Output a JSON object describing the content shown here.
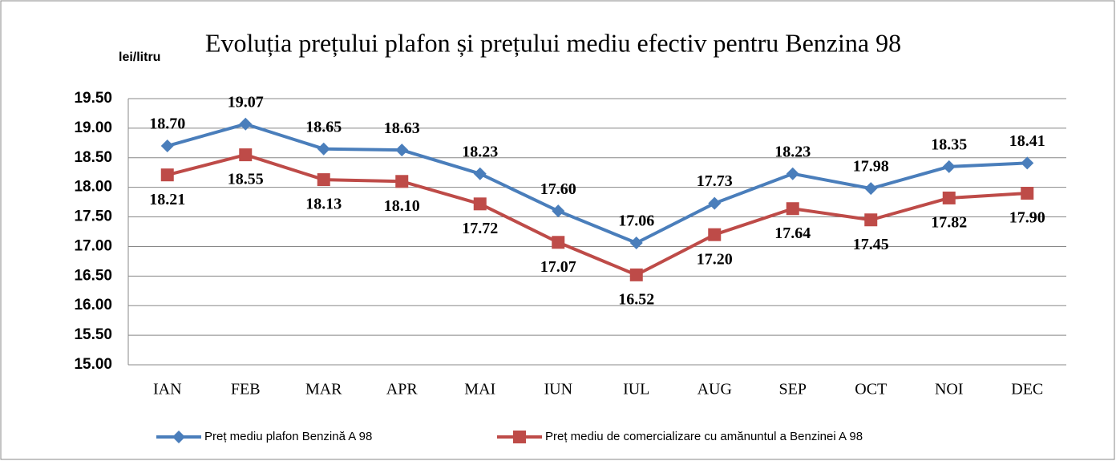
{
  "chart_data": {
    "type": "line",
    "title": "Evoluția prețului plafon și prețului mediu efectiv pentru Benzina 98",
    "y_label": "lei/litru",
    "categories": [
      "IAN",
      "FEB",
      "MAR",
      "APR",
      "MAI",
      "IUN",
      "IUL",
      "AUG",
      "SEP",
      "OCT",
      "NOI",
      "DEC"
    ],
    "series": [
      {
        "name": "Preț mediu plafon Benzină A 98",
        "color": "#4a7ebb",
        "marker": "diamond",
        "values": [
          18.7,
          19.07,
          18.65,
          18.63,
          18.23,
          17.6,
          17.06,
          17.73,
          18.23,
          17.98,
          18.35,
          18.41
        ],
        "value_labels": [
          "18.70",
          "19.07",
          "18.65",
          "18.63",
          "18.23",
          "17.60",
          "17.06",
          "17.73",
          "18.23",
          "17.98",
          "18.35",
          "18.41"
        ]
      },
      {
        "name": "Preț mediu de comercializare cu amănuntul a Benzinei A 98",
        "color": "#be4b48",
        "marker": "square",
        "values": [
          18.21,
          18.55,
          18.13,
          18.1,
          17.72,
          17.07,
          16.52,
          17.2,
          17.64,
          17.45,
          17.82,
          17.9
        ],
        "value_labels": [
          "18.21",
          "18.55",
          "18.13",
          "18.10",
          "17.72",
          "17.07",
          "16.52",
          "17.20",
          "17.64",
          "17.45",
          "17.82",
          "17.90"
        ]
      }
    ],
    "ylim": [
      15,
      19.5
    ],
    "yticks": [
      {
        "value": 15,
        "label": "15.00"
      },
      {
        "value": 15.5,
        "label": "15.50"
      },
      {
        "value": 16,
        "label": "16.00"
      },
      {
        "value": 16.5,
        "label": "16.50"
      },
      {
        "value": 17,
        "label": "17.00"
      },
      {
        "value": 17.5,
        "label": "17.50"
      },
      {
        "value": 18,
        "label": "18.00"
      },
      {
        "value": 18.5,
        "label": "18.50"
      },
      {
        "value": 19,
        "label": "19.00"
      },
      {
        "value": 19.5,
        "label": "19.50"
      }
    ],
    "grid": true,
    "legend": "bottom"
  }
}
